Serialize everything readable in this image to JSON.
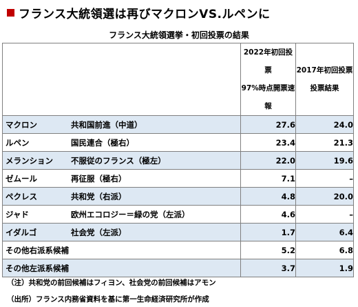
{
  "headline": "フランス大統領選は再びマクロンVS.ルペンに",
  "subtitle": "フランス大統領選挙・初回投票の結果",
  "chart_data": {
    "type": "table",
    "title": "フランス大統領選挙・初回投票の結果",
    "columns": [
      {
        "line1": "2022年初回投票",
        "line2": "97%時点開票速報"
      },
      {
        "line1": "2017年初回投票",
        "line2": "投票結果"
      }
    ],
    "rows": [
      {
        "candidate": "マクロン",
        "party": "共和国前進（中道）",
        "v2022": "27.6",
        "v2017": "24.0"
      },
      {
        "candidate": "ルペン",
        "party": "国民連合（極右）",
        "v2022": "23.4",
        "v2017": "21.3"
      },
      {
        "candidate": "メランション",
        "party": "不服従のフランス（極左）",
        "v2022": "22.0",
        "v2017": "19.6"
      },
      {
        "candidate": "ゼムール",
        "party": "再征服（極右）",
        "v2022": "7.1",
        "v2017": "–"
      },
      {
        "candidate": "ペクレス",
        "party": "共和党（右派）",
        "v2022": "4.8",
        "v2017": "20.0"
      },
      {
        "candidate": "ジャド",
        "party": "欧州エコロジー＝緑の党（左派）",
        "v2022": "4.6",
        "v2017": "–"
      },
      {
        "candidate": "イダルゴ",
        "party": "社会党（左派）",
        "v2022": "1.7",
        "v2017": "6.4"
      },
      {
        "candidate": "その他右派系候補",
        "party": "",
        "v2022": "5.2",
        "v2017": "6.8"
      },
      {
        "candidate": "その他左派系候補",
        "party": "",
        "v2022": "3.7",
        "v2017": "1.9"
      }
    ]
  },
  "notes": {
    "note": "（注）共和党の前回候補はフィヨン、社会党の前回候補はアモン",
    "source": "（出所）フランス内務省資料を基に第一生命経済研究所が作成"
  },
  "colors": {
    "accent": "#c00000",
    "stripe": "#dde8f3",
    "border": "#7f7f7f"
  }
}
